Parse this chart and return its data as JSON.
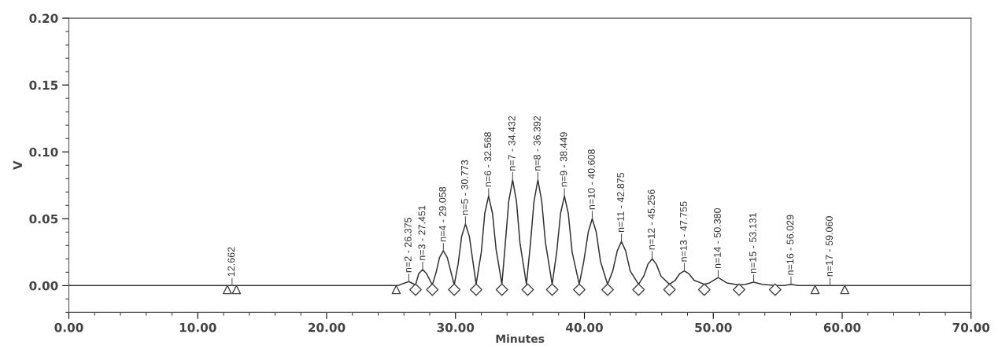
{
  "chart_data": {
    "type": "line",
    "xlabel": "Minutes",
    "ylabel": "V",
    "xlim": [
      0,
      70
    ],
    "ylim": [
      -0.02,
      0.2
    ],
    "xticks": [
      {
        "value": 0,
        "label": "0.00"
      },
      {
        "value": 10,
        "label": "10.00"
      },
      {
        "value": 20,
        "label": "20.00"
      },
      {
        "value": 30,
        "label": "30.00"
      },
      {
        "value": 40,
        "label": "40.00"
      },
      {
        "value": 50,
        "label": "50.00"
      },
      {
        "value": 60,
        "label": "60.00"
      },
      {
        "value": 70,
        "label": "70.00"
      }
    ],
    "yticks": [
      {
        "value": 0,
        "label": "0.00"
      },
      {
        "value": 0.05,
        "label": "0.05"
      },
      {
        "value": 0.1,
        "label": "0.10"
      },
      {
        "value": 0.15,
        "label": "0.15"
      },
      {
        "value": 0.2,
        "label": "0.20"
      }
    ],
    "grid": false,
    "line_style": "solid",
    "series": [
      {
        "color": "#333333",
        "marker": "none",
        "x": [
          0,
          25.5,
          26.375,
          26.9,
          27.15,
          27.451,
          27.75,
          28.2,
          28.5,
          28.76,
          29.058,
          29.36,
          29.65,
          29.9,
          30.2,
          30.48,
          30.773,
          31.07,
          31.35,
          31.6,
          32.0,
          32.27,
          32.568,
          32.87,
          33.15,
          33.6,
          33.85,
          34.13,
          34.432,
          34.73,
          35.0,
          35.5,
          35.8,
          36.09,
          36.392,
          36.69,
          36.98,
          37.5,
          37.85,
          38.15,
          38.449,
          38.75,
          39.05,
          39.6,
          39.95,
          40.3,
          40.608,
          40.92,
          41.25,
          41.8,
          42.2,
          42.55,
          42.875,
          43.2,
          43.55,
          44.2,
          44.6,
          44.93,
          45.256,
          45.58,
          45.95,
          46.6,
          47.05,
          47.4,
          47.755,
          48.1,
          48.5,
          49.3,
          49.7,
          50.38,
          51.05,
          52.0,
          52.5,
          53.131,
          53.8,
          54.8,
          55.5,
          56.029,
          56.6,
          70
        ],
        "values": [
          0,
          0,
          0.003,
          0.0005,
          0.009,
          0.012,
          0.009,
          0.0005,
          0.01,
          0.021,
          0.026,
          0.021,
          0.01,
          0.0005,
          0.016,
          0.037,
          0.046,
          0.037,
          0.018,
          0.001,
          0.025,
          0.054,
          0.067,
          0.054,
          0.027,
          0.001,
          0.03,
          0.063,
          0.079,
          0.063,
          0.032,
          0.001,
          0.03,
          0.063,
          0.079,
          0.063,
          0.032,
          0.001,
          0.025,
          0.054,
          0.067,
          0.054,
          0.025,
          0.001,
          0.018,
          0.04,
          0.05,
          0.04,
          0.018,
          0.001,
          0.011,
          0.026,
          0.033,
          0.026,
          0.011,
          0.001,
          0.007,
          0.016,
          0.02,
          0.016,
          0.007,
          0.001,
          0.004,
          0.009,
          0.011,
          0.009,
          0.004,
          0.001,
          0.002,
          0.006,
          0.002,
          0.0005,
          0.001,
          0.0025,
          0.001,
          0,
          0,
          0.001,
          0,
          0
        ]
      },
      {
        "type": "scatter",
        "color": "#444444",
        "marker": "triangle",
        "x": [
          12.3,
          13.0,
          25.4,
          57.9,
          60.2
        ],
        "values": [
          -0.003,
          -0.003,
          -0.003,
          -0.003,
          -0.003
        ]
      },
      {
        "type": "scatter",
        "color": "#444444",
        "marker": "diamond",
        "x": [
          26.9,
          28.2,
          29.9,
          31.6,
          33.6,
          35.6,
          37.5,
          39.6,
          41.8,
          44.2,
          46.6,
          49.3,
          52.0,
          54.8
        ],
        "values": [
          -0.003,
          -0.003,
          -0.003,
          -0.003,
          -0.003,
          -0.003,
          -0.003,
          -0.003,
          -0.003,
          -0.003,
          -0.003,
          -0.003,
          -0.003,
          -0.003
        ]
      }
    ],
    "annotations": [
      {
        "text": "12.662",
        "x": 12.662,
        "y": 0
      },
      {
        "text": "n=2 - 26.375",
        "x": 26.375,
        "y": 0.003
      },
      {
        "text": "n=3 - 27.451",
        "x": 27.451,
        "y": 0.012
      },
      {
        "text": "n=4 - 29.058",
        "x": 29.058,
        "y": 0.026
      },
      {
        "text": "n=5 - 30.773",
        "x": 30.773,
        "y": 0.046
      },
      {
        "text": "n=6 - 32.568",
        "x": 32.568,
        "y": 0.067
      },
      {
        "text": "n=7 - 34.432",
        "x": 34.432,
        "y": 0.079
      },
      {
        "text": "n=8 - 36.392",
        "x": 36.392,
        "y": 0.079
      },
      {
        "text": "n=9 - 38.449",
        "x": 38.449,
        "y": 0.067
      },
      {
        "text": "n=10 - 40.608",
        "x": 40.608,
        "y": 0.05
      },
      {
        "text": "n=11 - 42.875",
        "x": 42.875,
        "y": 0.033
      },
      {
        "text": "n=12 - 45.256",
        "x": 45.256,
        "y": 0.02
      },
      {
        "text": "n=13 - 47.755",
        "x": 47.755,
        "y": 0.011
      },
      {
        "text": "n=14 - 50.380",
        "x": 50.38,
        "y": 0.006
      },
      {
        "text": "n=15 - 53.131",
        "x": 53.131,
        "y": 0.0025
      },
      {
        "text": "n=16 - 56.029",
        "x": 56.029,
        "y": 0.001
      },
      {
        "text": "n=17 - 59.060",
        "x": 59.06,
        "y": 0
      }
    ]
  }
}
